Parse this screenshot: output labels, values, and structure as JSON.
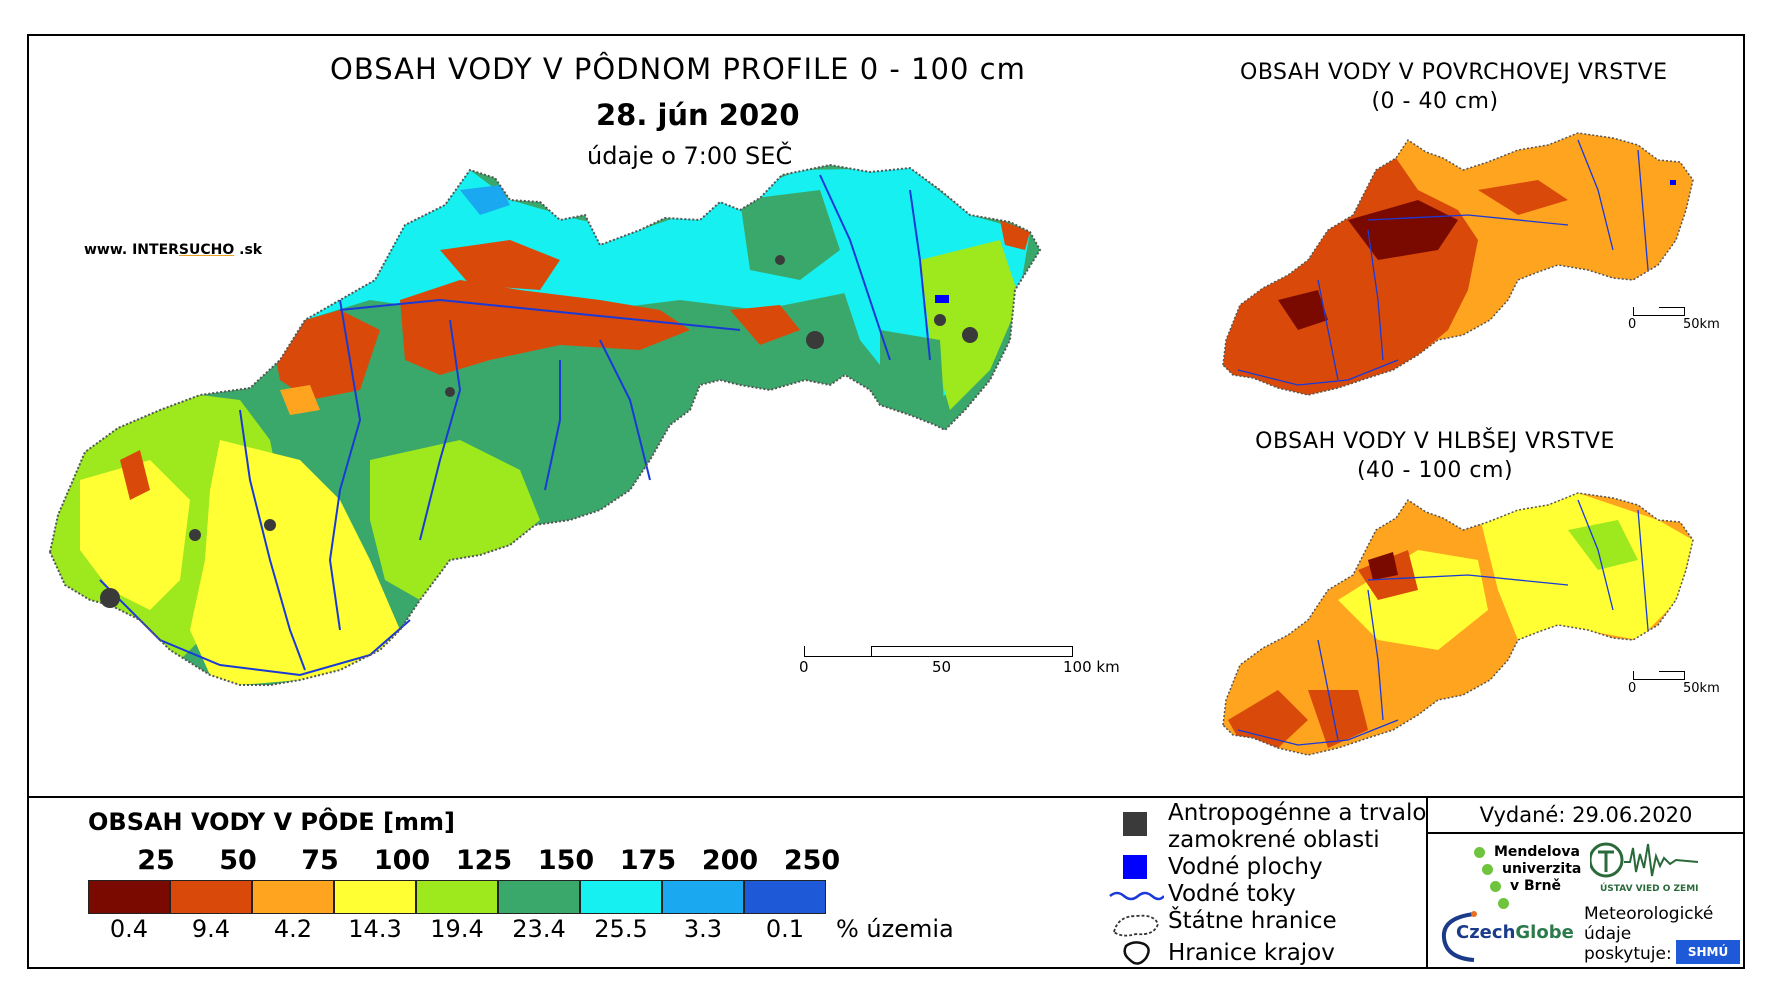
{
  "title": {
    "main": "OBSAH VODY V PÔDNOM PROFILE 0 - 100 cm",
    "date": "28. jún 2020",
    "time": "údaje o 7:00 SEČ"
  },
  "website": {
    "prefix": "www. INTER",
    "highlight": "SUCHO",
    "suffix": " .sk"
  },
  "main_map": {
    "scale": {
      "labels": [
        "0",
        "50",
        "100 km"
      ]
    }
  },
  "inset_surface": {
    "title_line1": "OBSAH VODY V POVRCHOVEJ VRSTVE",
    "title_line2": "(0 - 40 cm)",
    "scale": {
      "labels": [
        "0",
        "50km"
      ]
    }
  },
  "inset_deep": {
    "title_line1": "OBSAH VODY V HLBŠEJ VRSTVE",
    "title_line2": "(40 - 100 cm)",
    "scale": {
      "labels": [
        "0",
        "50km"
      ]
    }
  },
  "legend": {
    "title": "OBSAH VODY V PÔDE [mm]",
    "thresholds": [
      "25",
      "50",
      "75",
      "100",
      "125",
      "150",
      "175",
      "200",
      "250"
    ],
    "classes": [
      {
        "color": "#7a0a00",
        "percent": "0.4"
      },
      {
        "color": "#d94a0a",
        "percent": "9.4"
      },
      {
        "color": "#ffa41e",
        "percent": "4.2"
      },
      {
        "color": "#ffff33",
        "percent": "14.3"
      },
      {
        "color": "#9ee81e",
        "percent": "19.4"
      },
      {
        "color": "#3aa86a",
        "percent": "23.4"
      },
      {
        "color": "#17f0f0",
        "percent": "25.5"
      },
      {
        "color": "#1aa8f0",
        "percent": "3.3"
      },
      {
        "color": "#1e5ad8",
        "percent": "0.1"
      }
    ],
    "unit": "% územia"
  },
  "key": {
    "urban_line1": "Antropogénne a trvalo",
    "urban_line2": "zamokrené oblasti",
    "water_bodies": "Vodné plochy",
    "rivers": "Vodné toky",
    "border": "Štátne hranice",
    "regions": "Hranice krajov"
  },
  "issued": "Vydané: 29.06.2020",
  "partners": {
    "mendel_1": "Mendelova",
    "mendel_2": "univerzita",
    "mendel_3": "v Brně",
    "czechglobe_a": "Czech",
    "czechglobe_b": "Globe",
    "ustav": "ÚSTAV VIED O ZEMI",
    "meteo_1": "Meteorologické",
    "meteo_2": "údaje",
    "meteo_3": "poskytuje:",
    "shmu": "SHMÚ"
  },
  "colors": {
    "frame": "#000000",
    "river": "#1a3ad8",
    "border": "#555555"
  }
}
